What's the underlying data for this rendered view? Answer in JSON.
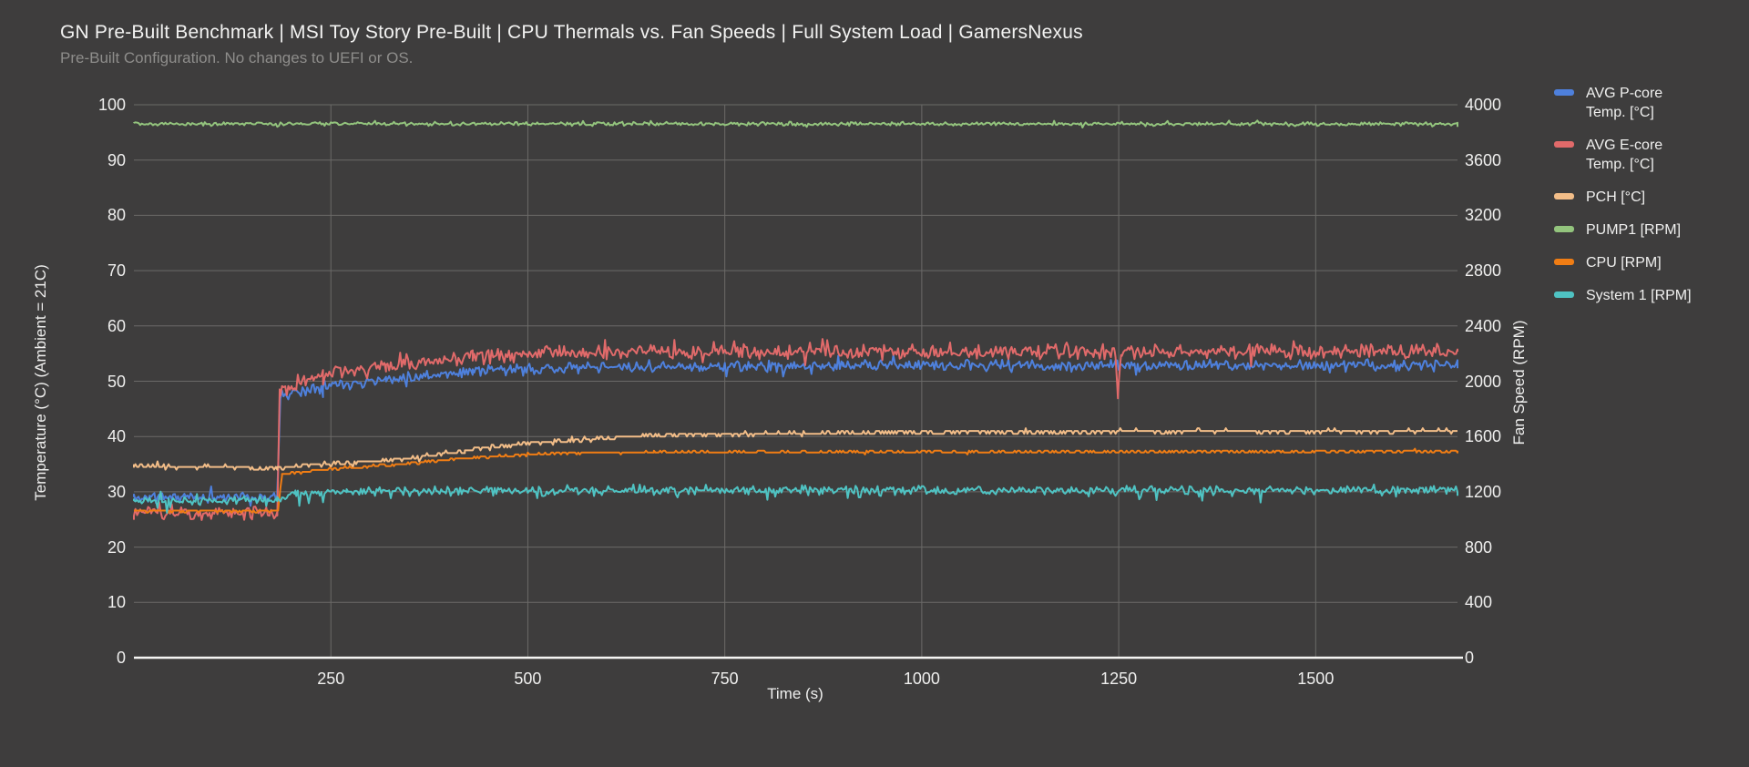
{
  "page": {
    "background": "#3e3d3d"
  },
  "chart_data": {
    "type": "line",
    "title": "GN Pre-Built Benchmark | MSI Toy Story Pre-Built | CPU Thermals vs. Fan Speeds | Full System Load | GamersNexus",
    "subtitle": "Pre-Built Configuration. No changes to UEFI or OS.",
    "xlabel": "Time (s)",
    "ylabel_left": "Temperature (°C) (Ambient = 21C)",
    "ylabel_right": "Fan Speed (RPM)",
    "x_range": [
      0,
      1680
    ],
    "x_ticks": [
      250,
      500,
      750,
      1000,
      1250,
      1500
    ],
    "y_left": {
      "range": [
        0,
        100
      ],
      "ticks": [
        0,
        10,
        20,
        30,
        40,
        50,
        60,
        70,
        80,
        90,
        100
      ]
    },
    "y_right": {
      "range": [
        0,
        4000
      ],
      "ticks": [
        0,
        400,
        800,
        1200,
        1600,
        2000,
        2400,
        2800,
        3200,
        3600,
        4000
      ]
    },
    "grid": true,
    "legend_position": "right",
    "style": {
      "background": "#3e3d3d",
      "grid_color": "#6b6a68",
      "axis_color": "#f5f5f3",
      "tick_text_color": "#efefee",
      "title_color": "#f2f2f1",
      "subtitle_color": "#8e8d8b",
      "legend_text_color": "#f0f0ef"
    },
    "series": [
      {
        "name": "avg-p-core-temp",
        "legend_label": "AVG P-core\nTemp. [°C]",
        "color": "#4e80dc",
        "axis": "left",
        "unit": "°C",
        "seed": 11,
        "noise_amp": 1.15,
        "keyframes": [
          [
            0,
            29
          ],
          [
            182,
            29
          ],
          [
            186,
            47.3
          ],
          [
            240,
            49.2
          ],
          [
            320,
            50.4
          ],
          [
            430,
            51.8
          ],
          [
            540,
            52.4
          ],
          [
            900,
            52.8
          ],
          [
            1680,
            52.9
          ]
        ]
      },
      {
        "name": "avg-e-core-temp",
        "legend_label": "AVG E-core\nTemp. [°C]",
        "color": "#e16a6a",
        "axis": "left",
        "unit": "°C",
        "seed": 23,
        "noise_amp": 1.5,
        "keyframes": [
          [
            0,
            26.2
          ],
          [
            182,
            26.2
          ],
          [
            185,
            48.3
          ],
          [
            240,
            51.2
          ],
          [
            320,
            52.9
          ],
          [
            430,
            54.4
          ],
          [
            540,
            55.1
          ],
          [
            900,
            55.4
          ],
          [
            1245,
            55.4
          ],
          [
            1249,
            47
          ],
          [
            1253,
            55.4
          ],
          [
            1680,
            55.5
          ]
        ]
      },
      {
        "name": "pch",
        "legend_label": "PCH [°C]",
        "color": "#f2bd88",
        "axis": "left",
        "unit": "°C",
        "seed": 37,
        "noise_amp": 0.42,
        "quantize": 0.5,
        "keyframes": [
          [
            0,
            34.7
          ],
          [
            100,
            34.5
          ],
          [
            182,
            34.3
          ],
          [
            240,
            34.9
          ],
          [
            330,
            35.8
          ],
          [
            420,
            37.4
          ],
          [
            500,
            38.8
          ],
          [
            570,
            39.4
          ],
          [
            650,
            40.2
          ],
          [
            780,
            40.5
          ],
          [
            1000,
            40.8
          ],
          [
            1680,
            41
          ]
        ]
      },
      {
        "name": "pump1",
        "legend_label": "PUMP1 [RPM]",
        "color": "#93c47d",
        "axis": "right",
        "unit": "RPM",
        "seed": 41,
        "noise_amp": 16,
        "keyframes": [
          [
            0,
            3862
          ],
          [
            1680,
            3862
          ]
        ]
      },
      {
        "name": "cpu",
        "legend_label": "CPU [RPM]",
        "color": "#f07d14",
        "axis": "right",
        "unit": "RPM",
        "seed": 53,
        "noise_amp": 10,
        "quantize": 14,
        "keyframes": [
          [
            0,
            1062
          ],
          [
            183,
            1062
          ],
          [
            188,
            1328
          ],
          [
            250,
            1366
          ],
          [
            340,
            1402
          ],
          [
            440,
            1452
          ],
          [
            540,
            1478
          ],
          [
            660,
            1488
          ],
          [
            1680,
            1492
          ]
        ]
      },
      {
        "name": "system-1",
        "legend_label": "System 1 [RPM]",
        "color": "#4fc3c3",
        "axis": "right",
        "unit": "RPM",
        "seed": 67,
        "noise_amp": 36,
        "down_spike_p": 0.035,
        "down_spike_mag": 70,
        "keyframes": [
          [
            0,
            1136
          ],
          [
            182,
            1136
          ],
          [
            205,
            1192
          ],
          [
            270,
            1206
          ],
          [
            1680,
            1214
          ]
        ]
      }
    ]
  }
}
